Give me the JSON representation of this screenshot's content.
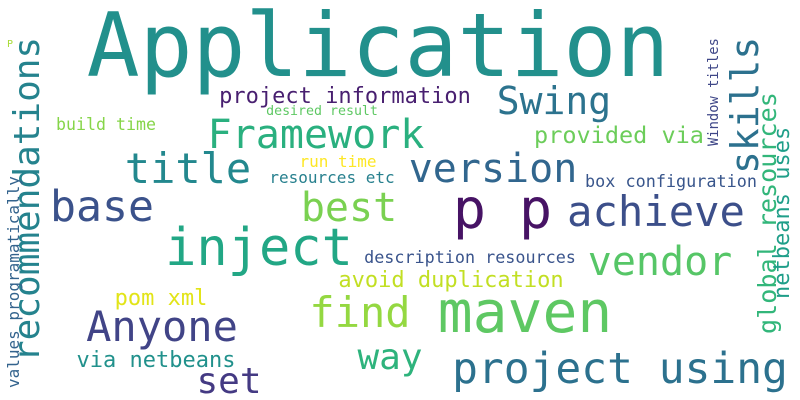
{
  "words": [
    {
      "text": "Application",
      "color": "#22908c"
    },
    {
      "text": "maven",
      "color": "#5ec863"
    },
    {
      "text": "p p",
      "color": "#471365"
    },
    {
      "text": "inject",
      "color": "#22a785"
    },
    {
      "text": "recommendations",
      "color": "#25838e"
    },
    {
      "text": "project using",
      "color": "#2c718e"
    },
    {
      "text": "achieve",
      "color": "#3c4f8a"
    },
    {
      "text": "version",
      "color": "#31668e"
    },
    {
      "text": "skills",
      "color": "#2c718e"
    },
    {
      "text": "base",
      "color": "#3b528b"
    },
    {
      "text": "vendor",
      "color": "#56c667"
    },
    {
      "text": "Framework",
      "color": "#2ab07f"
    },
    {
      "text": "Swing",
      "color": "#2c738e"
    },
    {
      "text": "title",
      "color": "#23888e"
    },
    {
      "text": "best",
      "color": "#7ad151"
    },
    {
      "text": "find",
      "color": "#94d841"
    },
    {
      "text": "Anyone",
      "color": "#414487"
    },
    {
      "text": "way",
      "color": "#2eb37c"
    },
    {
      "text": "set",
      "color": "#443a83"
    },
    {
      "text": "global resources",
      "color": "#32b67a"
    },
    {
      "text": "netbeans uses",
      "color": "#1f9e89"
    },
    {
      "text": "project information",
      "color": "#481f70"
    },
    {
      "text": "provided via",
      "color": "#6ccd5a"
    },
    {
      "text": "via netbeans",
      "color": "#21918c"
    },
    {
      "text": "avoid duplication",
      "color": "#c2df23"
    },
    {
      "text": "values programatically",
      "color": "#33638d"
    },
    {
      "text": "description resources",
      "color": "#3a548c"
    },
    {
      "text": "box configuration",
      "color": "#39568c"
    },
    {
      "text": "Window titles",
      "color": "#3f4788"
    },
    {
      "text": "pom xml",
      "color": "#e2e418"
    },
    {
      "text": "build time",
      "color": "#86d549"
    },
    {
      "text": "resources etc",
      "color": "#27808e"
    },
    {
      "text": "desired result",
      "color": "#5ec863"
    },
    {
      "text": "run time",
      "color": "#fde725"
    },
    {
      "text": "P",
      "color": "#a8db34"
    }
  ]
}
